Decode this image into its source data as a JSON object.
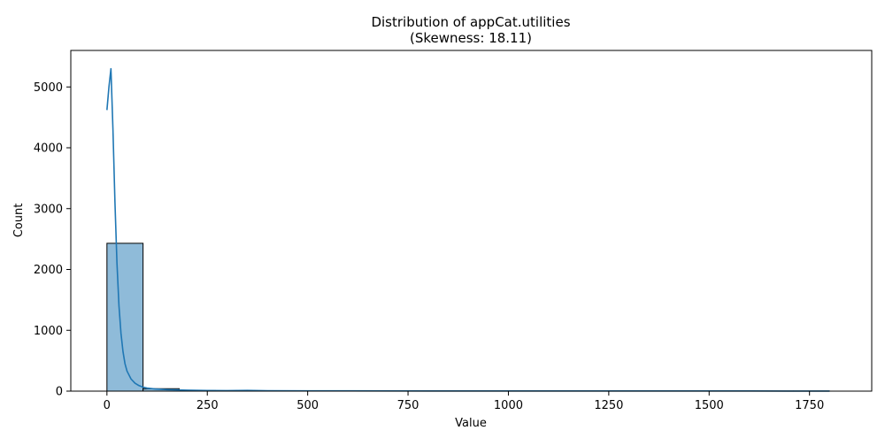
{
  "chart_data": {
    "type": "bar",
    "title": "Distribution of appCat.utilities",
    "subtitle": "(Skewness: 18.11)",
    "xlabel": "Value",
    "ylabel": "Count",
    "xlim": [
      -90,
      1905
    ],
    "ylim": [
      0,
      5600
    ],
    "x_ticks": [
      0,
      250,
      500,
      750,
      1000,
      1250,
      1500,
      1750
    ],
    "y_ticks": [
      0,
      1000,
      2000,
      3000,
      4000,
      5000
    ],
    "grid": false,
    "bar_color": "#8fbbd9",
    "bar_edge_color": "#000000",
    "kde_color": "#1f77b4",
    "bins": [
      {
        "start": 0,
        "end": 90,
        "count": 2430
      },
      {
        "start": 90,
        "end": 180,
        "count": 40
      },
      {
        "start": 180,
        "end": 270,
        "count": 10
      },
      {
        "start": 270,
        "end": 360,
        "count": 5
      },
      {
        "start": 360,
        "end": 450,
        "count": 5
      },
      {
        "start": 450,
        "end": 540,
        "count": 3
      },
      {
        "start": 540,
        "end": 630,
        "count": 3
      },
      {
        "start": 630,
        "end": 720,
        "count": 2
      },
      {
        "start": 720,
        "end": 810,
        "count": 2
      },
      {
        "start": 810,
        "end": 900,
        "count": 1
      },
      {
        "start": 900,
        "end": 990,
        "count": 1
      },
      {
        "start": 990,
        "end": 1080,
        "count": 1
      },
      {
        "start": 1080,
        "end": 1170,
        "count": 1
      },
      {
        "start": 1170,
        "end": 1260,
        "count": 1
      },
      {
        "start": 1260,
        "end": 1350,
        "count": 1
      },
      {
        "start": 1350,
        "end": 1440,
        "count": 1
      },
      {
        "start": 1440,
        "end": 1530,
        "count": 1
      },
      {
        "start": 1530,
        "end": 1620,
        "count": 1
      },
      {
        "start": 1620,
        "end": 1710,
        "count": 1
      },
      {
        "start": 1710,
        "end": 1800,
        "count": 1
      }
    ],
    "kde": {
      "x": [
        0,
        5,
        10,
        15,
        20,
        25,
        30,
        35,
        40,
        45,
        50,
        60,
        70,
        80,
        90,
        100,
        120,
        150,
        200,
        250,
        300,
        350,
        400,
        500,
        600,
        800,
        1000,
        1200,
        1400,
        1600,
        1800
      ],
      "y": [
        4620,
        5000,
        5300,
        4300,
        3100,
        2100,
        1400,
        950,
        650,
        450,
        330,
        200,
        130,
        90,
        65,
        50,
        35,
        25,
        15,
        10,
        8,
        12,
        6,
        4,
        5,
        3,
        3,
        2,
        2,
        2,
        1
      ]
    }
  }
}
